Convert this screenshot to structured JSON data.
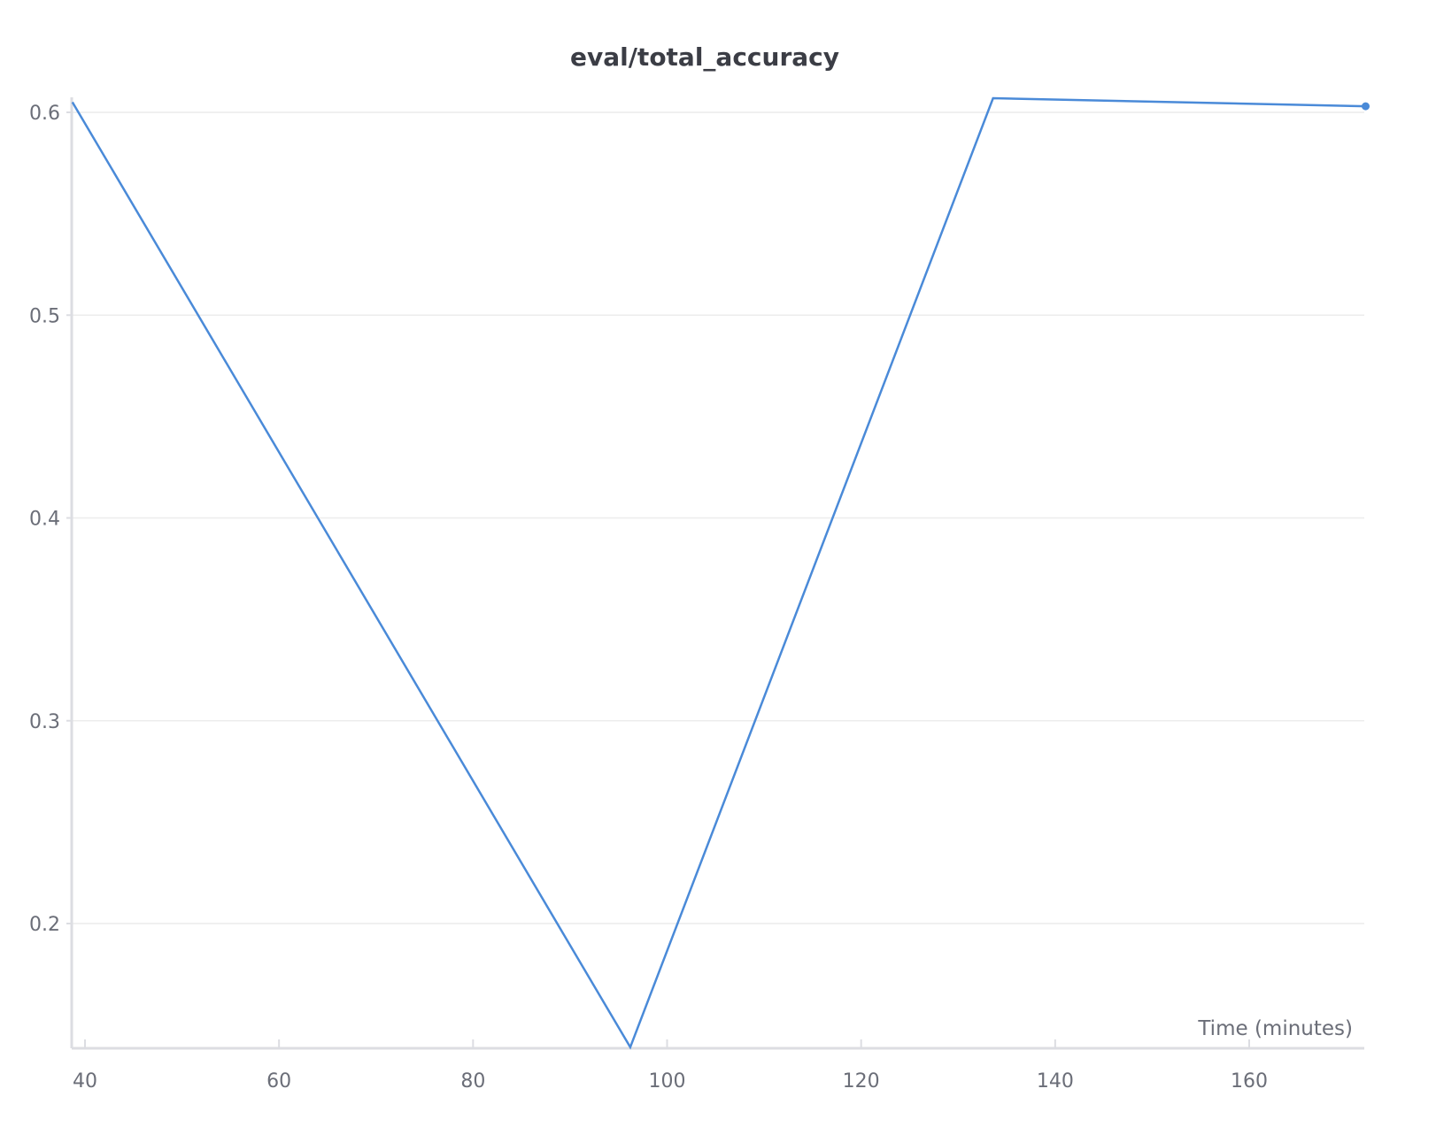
{
  "chart_data": {
    "type": "line",
    "title": "eval/total_accuracy",
    "xlabel": "Time (minutes)",
    "ylabel": "",
    "xlim": [
      38.7,
      172
    ],
    "ylim": [
      0.139,
      0.607
    ],
    "x_ticks": [
      40,
      60,
      80,
      100,
      120,
      140,
      160
    ],
    "y_ticks": [
      0.2,
      0.3,
      0.4,
      0.5,
      0.6
    ],
    "grid": "horizontal",
    "legend": "none",
    "colors": {
      "line": "#4a8ad8",
      "grid": "#ececec",
      "axis": "#dcdde2",
      "tick_label": "#6b6e78",
      "title": "#3b3d45"
    },
    "series": [
      {
        "x": [
          38.7,
          96.2,
          133.6,
          172
        ],
        "y": [
          0.605,
          0.139,
          0.607,
          0.603
        ],
        "end_marker": true
      }
    ]
  }
}
